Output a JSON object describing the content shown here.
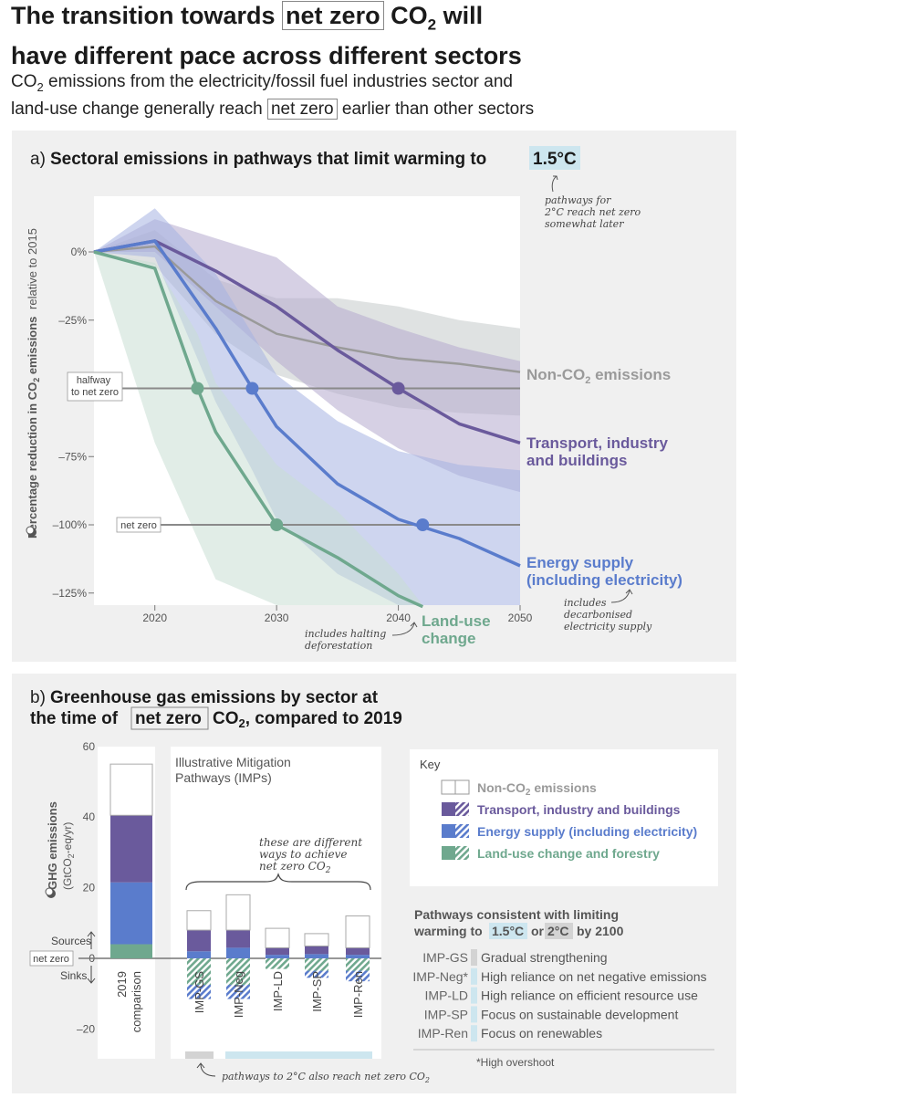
{
  "header": {
    "title_line1_a": "The transition towards",
    "title_line1_box": "net zero",
    "title_line1_b": "CO",
    "title_line1_sub": "2",
    "title_line1_c": "will",
    "title_line2": "have different pace across different sectors",
    "subtitle_line1_a": "CO",
    "subtitle_line1_sub": "2",
    "subtitle_line1_b": "emissions from the electricity/fossil fuel industries sector and",
    "subtitle_line2_a": "land-use change generally reach",
    "subtitle_line2_box": "net zero",
    "subtitle_line2_b": "earlier than other sectors"
  },
  "panel_a": {
    "title_prefix": "a)",
    "title_main": "Sectoral emissions in pathways that limit warming to",
    "title_highlight": "1.5°C",
    "note_2c": [
      "pathways for",
      "2°C reach net zero",
      "somewhat later"
    ],
    "note_electricity": [
      "includes",
      "decarbonised",
      "electricity supply"
    ],
    "note_deforestation": [
      "includes halting",
      "deforestation"
    ],
    "halfway_label": [
      "halfway",
      "to net zero"
    ],
    "netzero_label": "net zero"
  },
  "chart_data": [
    {
      "type": "line",
      "title": "Sectoral emissions in pathways that limit warming to 1.5°C",
      "xlabel": "",
      "ylabel": "Percentage reduction in CO₂ emissions relative to 2015",
      "ylabel_main": "Percentage reduction in CO",
      "ylabel_sub": "2",
      "ylabel_end": " emissions",
      "ylabel_small": "relative to 2015",
      "xlim": [
        2015,
        2050
      ],
      "ylim": [
        -130,
        20
      ],
      "x_ticks": [
        2020,
        2030,
        2040,
        2050
      ],
      "x_tick_labels": [
        "2020",
        "2030",
        "2040",
        "2050"
      ],
      "y_ticks": [
        0,
        -25,
        -75,
        -100,
        -125
      ],
      "y_tick_labels": [
        "0%",
        "–25%",
        "–75%",
        "–100%",
        "–125%"
      ],
      "reference_lines": [
        {
          "y": -50,
          "label": "halfway to net zero"
        },
        {
          "y": -100,
          "label": "net zero"
        }
      ],
      "series": [
        {
          "name": "Non-CO₂ emissions",
          "label_main": "Non-CO",
          "label_sub": "2",
          "label_end": " emissions",
          "color": "#9a9a9a",
          "band_color": "#c5cbcb",
          "x": [
            2015,
            2020,
            2025,
            2030,
            2035,
            2040,
            2045,
            2050
          ],
          "values": [
            0,
            2,
            -18,
            -30,
            -35,
            -39,
            -41,
            -44
          ],
          "low": [
            0,
            -5,
            -30,
            -45,
            -52,
            -57,
            -59,
            -60
          ],
          "high": [
            0,
            8,
            -10,
            -17,
            -17,
            -20,
            -25,
            -28
          ],
          "markers": []
        },
        {
          "name": "Transport, industry and buildings",
          "label_lines": [
            "Transport, industry",
            "and buildings"
          ],
          "color": "#6a5a9c",
          "band_color": "#b4aace",
          "x": [
            2015,
            2020,
            2025,
            2030,
            2035,
            2040,
            2045,
            2050
          ],
          "values": [
            0,
            4,
            -7,
            -20,
            -36,
            -50,
            -63,
            -70
          ],
          "low": [
            0,
            0,
            -20,
            -40,
            -58,
            -72,
            -82,
            -88
          ],
          "high": [
            0,
            12,
            5,
            -2,
            -20,
            -28,
            -35,
            -40
          ],
          "markers": [
            {
              "x": 2040,
              "y": -50
            }
          ]
        },
        {
          "name": "Energy supply (including electricity)",
          "label_lines": [
            "Energy supply",
            "(including electricity)"
          ],
          "color": "#5a7ccc",
          "band_color": "#a6b3e2",
          "x": [
            2015,
            2020,
            2025,
            2028,
            2030,
            2035,
            2040,
            2045,
            2050
          ],
          "values": [
            0,
            4,
            -28,
            -50,
            -64,
            -85,
            -98,
            -105,
            -115
          ],
          "low": [
            0,
            -2,
            -55,
            -80,
            -98,
            -118,
            -130,
            -130,
            -130
          ],
          "high": [
            0,
            16,
            -8,
            -30,
            -45,
            -62,
            -73,
            -78,
            -80
          ],
          "markers": [
            {
              "x": 2028,
              "y": -50
            },
            {
              "x": 2042,
              "y": -100
            }
          ]
        },
        {
          "name": "Land-use change",
          "label_lines": [
            "Land-use",
            "change"
          ],
          "color": "#6fa88e",
          "band_color": "#c9dfd3",
          "x": [
            2015,
            2020,
            2023.5,
            2025,
            2030,
            2035,
            2040,
            2042
          ],
          "values": [
            0,
            -6,
            -50,
            -66,
            -100,
            -112,
            -126,
            -130
          ],
          "low": [
            0,
            -70,
            -105,
            -120,
            -130,
            -130,
            -130,
            -130
          ],
          "high": [
            0,
            -4,
            -30,
            -48,
            -78,
            -95,
            -118,
            -130
          ],
          "markers": [
            {
              "x": 2023.5,
              "y": -50
            },
            {
              "x": 2030,
              "y": -100
            }
          ]
        }
      ]
    },
    {
      "type": "bar",
      "title": "Greenhouse gas emissions by sector at the time of net zero CO₂, compared to 2019",
      "ylabel": "GHG emissions (GtCO₂-eq/yr)",
      "ylabel_main": "GHG emissions",
      "ylabel_units": "(GtCO",
      "ylabel_units_sub": "2",
      "ylabel_units_end": "-eq/yr)",
      "ylim": [
        -28,
        60
      ],
      "y_ticks": [
        60,
        40,
        20,
        0,
        -20
      ],
      "y_tick_labels": [
        "60",
        "40",
        "20",
        "0",
        "–20"
      ],
      "categories": [
        "2019 comparison",
        "IMP-GS",
        "IMP-Neg",
        "IMP-LD",
        "IMP-SP",
        "IMP-Ren"
      ],
      "category_labels": [
        [
          "2019",
          "comparison"
        ],
        [
          "IMP-GS"
        ],
        [
          "IMP-Neg"
        ],
        [
          "IMP-LD"
        ],
        [
          "IMP-SP"
        ],
        [
          "IMP-Ren"
        ]
      ],
      "series": [
        {
          "name": "Land-use change and forestry",
          "color": "#6fa88e",
          "positive": [
            4,
            0,
            0,
            0,
            0,
            0
          ],
          "negative": [
            0,
            -7.5,
            -7.5,
            -3,
            -3.5,
            -3.5
          ]
        },
        {
          "name": "Energy supply (including electricity)",
          "color": "#5a7ccc",
          "positive": [
            17.5,
            2,
            3,
            1,
            1.2,
            1
          ],
          "negative": [
            0,
            -4,
            -4,
            0,
            -2,
            -3
          ]
        },
        {
          "name": "Transport, industry and buildings",
          "color": "#6a5a9c",
          "positive": [
            19,
            6,
            5,
            2,
            2.3,
            2
          ],
          "negative": [
            0,
            0,
            0,
            0,
            0,
            0
          ]
        },
        {
          "name": "Non-CO₂ emissions",
          "color": "#ffffff",
          "positive": [
            14.5,
            5.5,
            10,
            5.5,
            3.5,
            9
          ],
          "negative": [
            0,
            0,
            0,
            0,
            0,
            0
          ]
        }
      ]
    }
  ],
  "panel_b": {
    "title_prefix": "b)",
    "title_line1": "Greenhouse gas emissions by sector at",
    "title_line2_a": "the time of",
    "title_line2_box": "net zero",
    "title_line2_b": "CO",
    "title_line2_sub": "2",
    "title_line2_c": ", compared to 2019",
    "imp_title": [
      "Illustrative Mitigation",
      "Pathways (IMPs)"
    ],
    "brace_note": [
      "these are different",
      "ways to achieve",
      "net zero CO"
    ],
    "brace_note_sub": "2",
    "sources_label": "Sources",
    "sinks_label": "Sinks",
    "netzero_label": "net zero",
    "pathway_note_a": "pathways to 2°C also reach net zero CO",
    "pathway_note_sub": "2",
    "key": {
      "title": "Key",
      "items": [
        {
          "label": "Non-CO₂ emissions",
          "label_main": "Non-CO",
          "label_sub": "2",
          "label_end": " emissions",
          "color": "#9a9a9a"
        },
        {
          "label": "Transport, industry and buildings",
          "color": "#6a5a9c"
        },
        {
          "label": "Energy supply (including electricity)",
          "color": "#5a7ccc"
        },
        {
          "label": "Land-use change and forestry",
          "color": "#6fa88e"
        }
      ]
    },
    "pathways": {
      "title_line1": "Pathways consistent with limiting",
      "title_line2_a": "warming to",
      "title_15": "1.5°C",
      "title_or": "or",
      "title_2": "2°C",
      "title_end": "by 2100",
      "rows": [
        {
          "code": "IMP-GS",
          "desc": "Gradual strengthening",
          "warming": "2°C"
        },
        {
          "code": "IMP-Neg*",
          "desc": "High reliance on net negative emissions",
          "warming": "1.5°C"
        },
        {
          "code": "IMP-LD",
          "desc": "High reliance on efficient resource use",
          "warming": "1.5°C"
        },
        {
          "code": "IMP-SP",
          "desc": "Focus on sustainable development",
          "warming": "1.5°C"
        },
        {
          "code": "IMP-Ren",
          "desc": "Focus on renewables",
          "warming": "1.5°C"
        }
      ],
      "footnote": "*High overshoot"
    }
  },
  "colors": {
    "highlight_15": "#cde6ef",
    "highlight_2": "#d3d3d3",
    "panel_bg": "#f0f0f0"
  }
}
